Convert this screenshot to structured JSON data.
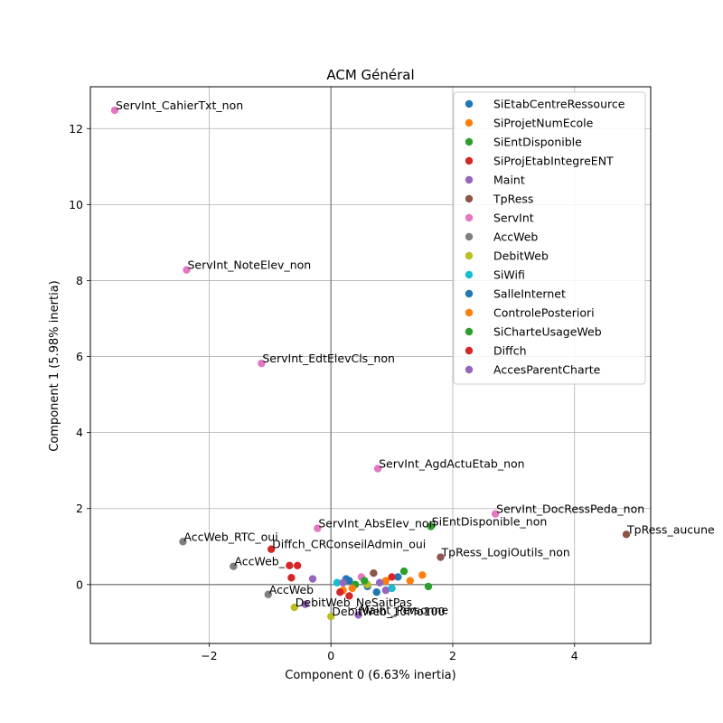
{
  "chart_data": {
    "type": "scatter",
    "title": "ACM Général",
    "xlabel": "Component 0 (6.63% inertia)",
    "ylabel": "Component 1 (5.98% inertia)",
    "xlim": [
      -3.95,
      5.25
    ],
    "ylim": [
      -1.55,
      13.1
    ],
    "xticks": [
      -2,
      0,
      2,
      4
    ],
    "yticks": [
      0,
      2,
      4,
      6,
      8,
      10,
      12
    ],
    "grid": true,
    "legend_position": "top-right",
    "series": [
      {
        "name": "SiEtabCentreRessource",
        "color": "#1f77b4",
        "points": [
          {
            "x": 0.3,
            "y": 0.1
          },
          {
            "x": 0.6,
            "y": -0.05
          },
          {
            "x": 1.1,
            "y": 0.2
          }
        ]
      },
      {
        "name": "SiProjetNumEcole",
        "color": "#ff7f0e",
        "points": [
          {
            "x": 0.2,
            "y": -0.15
          },
          {
            "x": 0.9,
            "y": 0.1
          },
          {
            "x": 1.5,
            "y": 0.25
          }
        ]
      },
      {
        "name": "SiEntDisponible",
        "color": "#2ca02c",
        "points": [
          {
            "x": 1.64,
            "y": 1.53,
            "label": "SiEntDisponible_non"
          },
          {
            "x": 0.4,
            "y": 0.0
          },
          {
            "x": 1.2,
            "y": 0.35
          }
        ]
      },
      {
        "name": "SiProjEtabIntegreENT",
        "color": "#d62728",
        "points": [
          {
            "x": -0.98,
            "y": 0.93,
            "label": "Diffch_CRConseilAdmin_oui"
          },
          {
            "x": -0.65,
            "y": 0.18
          },
          {
            "x": 0.3,
            "y": -0.3
          },
          {
            "x": -0.55,
            "y": 0.5
          }
        ]
      },
      {
        "name": "Maint",
        "color": "#9467bd",
        "points": [
          {
            "x": 0.45,
            "y": -0.8,
            "label": "Maint_Personne"
          },
          {
            "x": -0.42,
            "y": -0.52
          },
          {
            "x": -0.3,
            "y": 0.15
          },
          {
            "x": 0.8,
            "y": 0.05
          }
        ]
      },
      {
        "name": "TpRess",
        "color": "#8c564b",
        "points": [
          {
            "x": 4.85,
            "y": 1.32,
            "label": "TpRess_aucune"
          },
          {
            "x": 1.8,
            "y": 0.72,
            "label": "TpRess_LogiOutils_non"
          },
          {
            "x": 0.7,
            "y": 0.3
          }
        ]
      },
      {
        "name": "ServInt",
        "color": "#e377c2",
        "points": [
          {
            "x": -3.55,
            "y": 12.48,
            "label": "ServInt_CahierTxt_non"
          },
          {
            "x": -2.37,
            "y": 8.28,
            "label": "ServInt_NoteElev_non"
          },
          {
            "x": -1.14,
            "y": 5.82,
            "label": "ServInt_EdtElevCls_non"
          },
          {
            "x": 0.77,
            "y": 3.05,
            "label": "ServInt_AgdActuEtab_non"
          },
          {
            "x": 2.7,
            "y": 1.86,
            "label": "ServInt_DocRessPeda_non"
          },
          {
            "x": -0.22,
            "y": 1.48,
            "label": "ServInt_AbsElev_non"
          },
          {
            "x": 0.5,
            "y": 0.2
          }
        ]
      },
      {
        "name": "AccWeb",
        "color": "#7f7f7f",
        "points": [
          {
            "x": -2.43,
            "y": 1.13,
            "label": "AccWeb_RTC_oui"
          },
          {
            "x": -1.6,
            "y": 0.48,
            "label": "AccWeb_"
          },
          {
            "x": -1.03,
            "y": -0.26,
            "label": "AccWeb"
          }
        ]
      },
      {
        "name": "DebitWeb",
        "color": "#bcbd22",
        "points": [
          {
            "x": -0.6,
            "y": -0.6,
            "label": "DebitWeb_NeSaitPas"
          },
          {
            "x": 0.0,
            "y": -0.84,
            "label": "DebitWeb_10Mo100"
          },
          {
            "x": 0.6,
            "y": 0.0
          }
        ]
      },
      {
        "name": "SiWifi",
        "color": "#17becf",
        "points": [
          {
            "x": 0.1,
            "y": 0.05
          },
          {
            "x": 1.0,
            "y": -0.1
          }
        ]
      },
      {
        "name": "SalleInternet",
        "color": "#1f77b4",
        "points": [
          {
            "x": 0.25,
            "y": 0.15
          },
          {
            "x": 0.75,
            "y": -0.2
          }
        ]
      },
      {
        "name": "ControlePosteriori",
        "color": "#ff7f0e",
        "points": [
          {
            "x": 0.35,
            "y": -0.1
          },
          {
            "x": 1.3,
            "y": 0.1
          }
        ]
      },
      {
        "name": "SiCharteUsageWeb",
        "color": "#2ca02c",
        "points": [
          {
            "x": 0.55,
            "y": 0.1
          },
          {
            "x": 1.6,
            "y": -0.05
          }
        ]
      },
      {
        "name": "Diffch",
        "color": "#d62728",
        "points": [
          {
            "x": -0.68,
            "y": 0.5
          },
          {
            "x": 0.15,
            "y": -0.2
          },
          {
            "x": 1.0,
            "y": 0.2
          }
        ]
      },
      {
        "name": "AccesParentCharte",
        "color": "#9467bd",
        "points": [
          {
            "x": 0.2,
            "y": 0.05
          },
          {
            "x": 0.9,
            "y": -0.15
          }
        ]
      }
    ]
  }
}
